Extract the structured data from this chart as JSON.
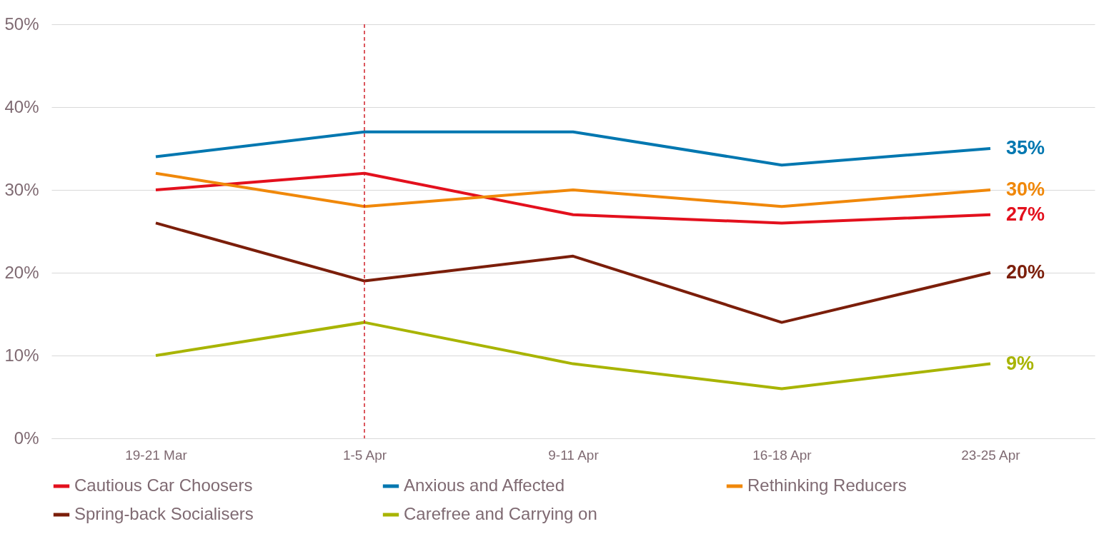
{
  "chart_data": {
    "type": "line",
    "categories": [
      "19-21 Mar",
      "1-5 Apr",
      "9-11 Apr",
      "16-18 Apr",
      "23-25 Apr"
    ],
    "series": [
      {
        "name": "Cautious Car Choosers",
        "color": "#e3101d",
        "values": [
          30,
          32,
          27,
          26,
          27
        ],
        "value_labels": [
          null,
          null,
          null,
          null,
          "27%"
        ]
      },
      {
        "name": "Anxious and Affected",
        "color": "#0077b0",
        "values": [
          34,
          37,
          37,
          33,
          35
        ],
        "value_labels": [
          null,
          null,
          null,
          null,
          "35%"
        ]
      },
      {
        "name": "Rethinking Reducers",
        "color": "#f0880a",
        "values": [
          32,
          28,
          30,
          28,
          30
        ],
        "value_labels": [
          null,
          null,
          null,
          null,
          "30%"
        ]
      },
      {
        "name": "Spring-back Socialisers",
        "color": "#7b1e0a",
        "values": [
          26,
          19,
          22,
          14,
          20
        ],
        "value_labels": [
          null,
          null,
          null,
          null,
          "20%"
        ]
      },
      {
        "name": "Carefree and Carrying on",
        "color": "#a8b400",
        "values": [
          10,
          14,
          9,
          6,
          9
        ],
        "value_labels": [
          null,
          null,
          null,
          null,
          "9%"
        ]
      }
    ],
    "ylim": [
      0,
      50
    ],
    "yticks": [
      {
        "value": 0,
        "label": "0%"
      },
      {
        "value": 10,
        "label": "10%"
      },
      {
        "value": 20,
        "label": "20%"
      },
      {
        "value": 30,
        "label": "30%"
      },
      {
        "value": 40,
        "label": "40%"
      },
      {
        "value": 50,
        "label": "50%"
      }
    ],
    "ref_lines": [
      {
        "axis": "x",
        "value": "1-5 Apr",
        "color": "#d0202a",
        "line_style": "dashed"
      }
    ],
    "grid": "y",
    "legend": "bottom",
    "marker": "none",
    "line_style": "solid"
  }
}
